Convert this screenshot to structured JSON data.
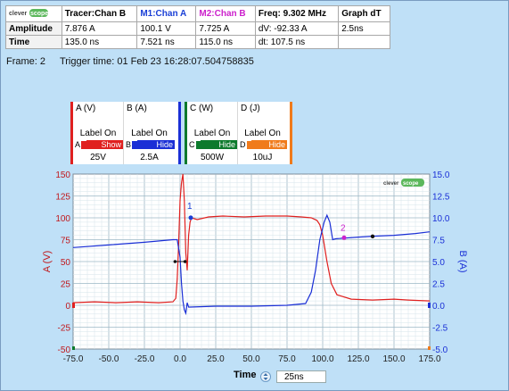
{
  "window": {
    "frame_label": "Frame: 2",
    "trigger_label": "Trigger time: 01 Feb 23 16:28:07.504758835"
  },
  "logo": {
    "part1": "clever",
    "part2": "scope"
  },
  "measure_table": {
    "headers": [
      "Tracer:Chan B",
      "M1:Chan A",
      "M2:Chan B",
      "Freq: 9.302 MHz",
      "Graph dT"
    ],
    "rows": [
      {
        "label": "Amplitude",
        "cells": [
          "7.876 A",
          "100.1 V",
          "7.725 A",
          "dV: -92.33 A",
          "2.5ns"
        ]
      },
      {
        "label": "Time",
        "cells": [
          "135.0 ns",
          "7.521 ns",
          "115.0 ns",
          "dt:  107.5 ns",
          ""
        ]
      }
    ],
    "header_colors": {
      "M1": "#1a3fd6",
      "M2": "#cc22cc"
    }
  },
  "channels": [
    {
      "title": "A (V)",
      "label_on": "Label On",
      "letter": "A",
      "btn": "Show",
      "btn_color": "#e0201f",
      "scale": "25V",
      "line_color": "#e0201f"
    },
    {
      "title": "B (A)",
      "label_on": "Label On",
      "letter": "B",
      "btn": "Hide",
      "btn_color": "#1a2fd6",
      "scale": "2.5A",
      "line_color": "#1a2fd6"
    },
    {
      "title": "C (W)",
      "label_on": "Label On",
      "letter": "C",
      "btn": "Hide",
      "btn_color": "#0d7a2c",
      "scale": "500W",
      "line_color": "#0d7a2c"
    },
    {
      "title": "D (J)",
      "label_on": "Label On",
      "letter": "D",
      "btn": "Hide",
      "btn_color": "#f07b1b",
      "scale": "10uJ",
      "line_color": "#f07b1b"
    }
  ],
  "chart": {
    "ylabel_left": "A (V)",
    "ylabel_right": "B (A)",
    "marker1_label": "1",
    "marker2_label": "2"
  },
  "chart_data": {
    "type": "line",
    "x_ticks": [
      "-75.0",
      "-50.0",
      "-25.0",
      "0.0",
      "25.0",
      "50.0",
      "75.0",
      "100.0",
      "125.0",
      "150.0",
      "175.0"
    ],
    "x_range": [
      -75,
      175
    ],
    "y_left_ticks": [
      "150",
      "125",
      "100",
      "75",
      "50",
      "25",
      "0",
      "-25",
      "-50"
    ],
    "y_left_range": [
      -50,
      150
    ],
    "y_right_ticks": [
      "15.0",
      "12.5",
      "10.0",
      "7.5",
      "5.0",
      "2.5",
      "0.0",
      "-2.5",
      "-5.0"
    ],
    "y_right_range": [
      -5,
      15
    ],
    "series": [
      {
        "name": "A (V)",
        "color": "#e0201f",
        "axis": "left",
        "points": [
          [
            -75,
            3
          ],
          [
            -60,
            4
          ],
          [
            -45,
            3
          ],
          [
            -30,
            4
          ],
          [
            -15,
            3
          ],
          [
            -5,
            4
          ],
          [
            -3,
            8
          ],
          [
            -2,
            30
          ],
          [
            -1,
            70
          ],
          [
            0,
            120
          ],
          [
            1,
            140
          ],
          [
            2,
            150
          ],
          [
            3,
            120
          ],
          [
            4,
            60
          ],
          [
            5,
            40
          ],
          [
            6,
            80
          ],
          [
            7,
            95
          ],
          [
            8,
            100
          ],
          [
            12,
            98
          ],
          [
            20,
            101
          ],
          [
            30,
            102
          ],
          [
            45,
            101
          ],
          [
            60,
            102
          ],
          [
            75,
            102
          ],
          [
            85,
            101
          ],
          [
            92,
            100
          ],
          [
            96,
            97
          ],
          [
            98,
            92
          ],
          [
            100,
            80
          ],
          [
            103,
            50
          ],
          [
            106,
            25
          ],
          [
            110,
            12
          ],
          [
            120,
            7
          ],
          [
            135,
            6
          ],
          [
            150,
            7
          ],
          [
            160,
            6
          ],
          [
            175,
            5
          ]
        ]
      },
      {
        "name": "B (A)",
        "color": "#1a2fd6",
        "axis": "right",
        "points": [
          [
            -75,
            6.6
          ],
          [
            -50,
            6.9
          ],
          [
            -25,
            7.2
          ],
          [
            -5,
            7.5
          ],
          [
            -2,
            7.5
          ],
          [
            0,
            5.5
          ],
          [
            1,
            2.5
          ],
          [
            2,
            0.5
          ],
          [
            3,
            -0.5
          ],
          [
            4,
            -0.9
          ],
          [
            5,
            0.3
          ],
          [
            6,
            -0.2
          ],
          [
            7,
            -0.2
          ],
          [
            25,
            -0.1
          ],
          [
            50,
            -0.1
          ],
          [
            75,
            0
          ],
          [
            88,
            0.2
          ],
          [
            92,
            1.5
          ],
          [
            95,
            4
          ],
          [
            98,
            7.5
          ],
          [
            101,
            9.5
          ],
          [
            103,
            10.3
          ],
          [
            105,
            9.5
          ],
          [
            107,
            7.5
          ],
          [
            109,
            7.6
          ],
          [
            125,
            7.8
          ],
          [
            135,
            7.9
          ],
          [
            150,
            8
          ],
          [
            165,
            8.2
          ],
          [
            175,
            8.4
          ]
        ]
      }
    ]
  },
  "timebar": {
    "label": "Time",
    "value": "25ns"
  }
}
